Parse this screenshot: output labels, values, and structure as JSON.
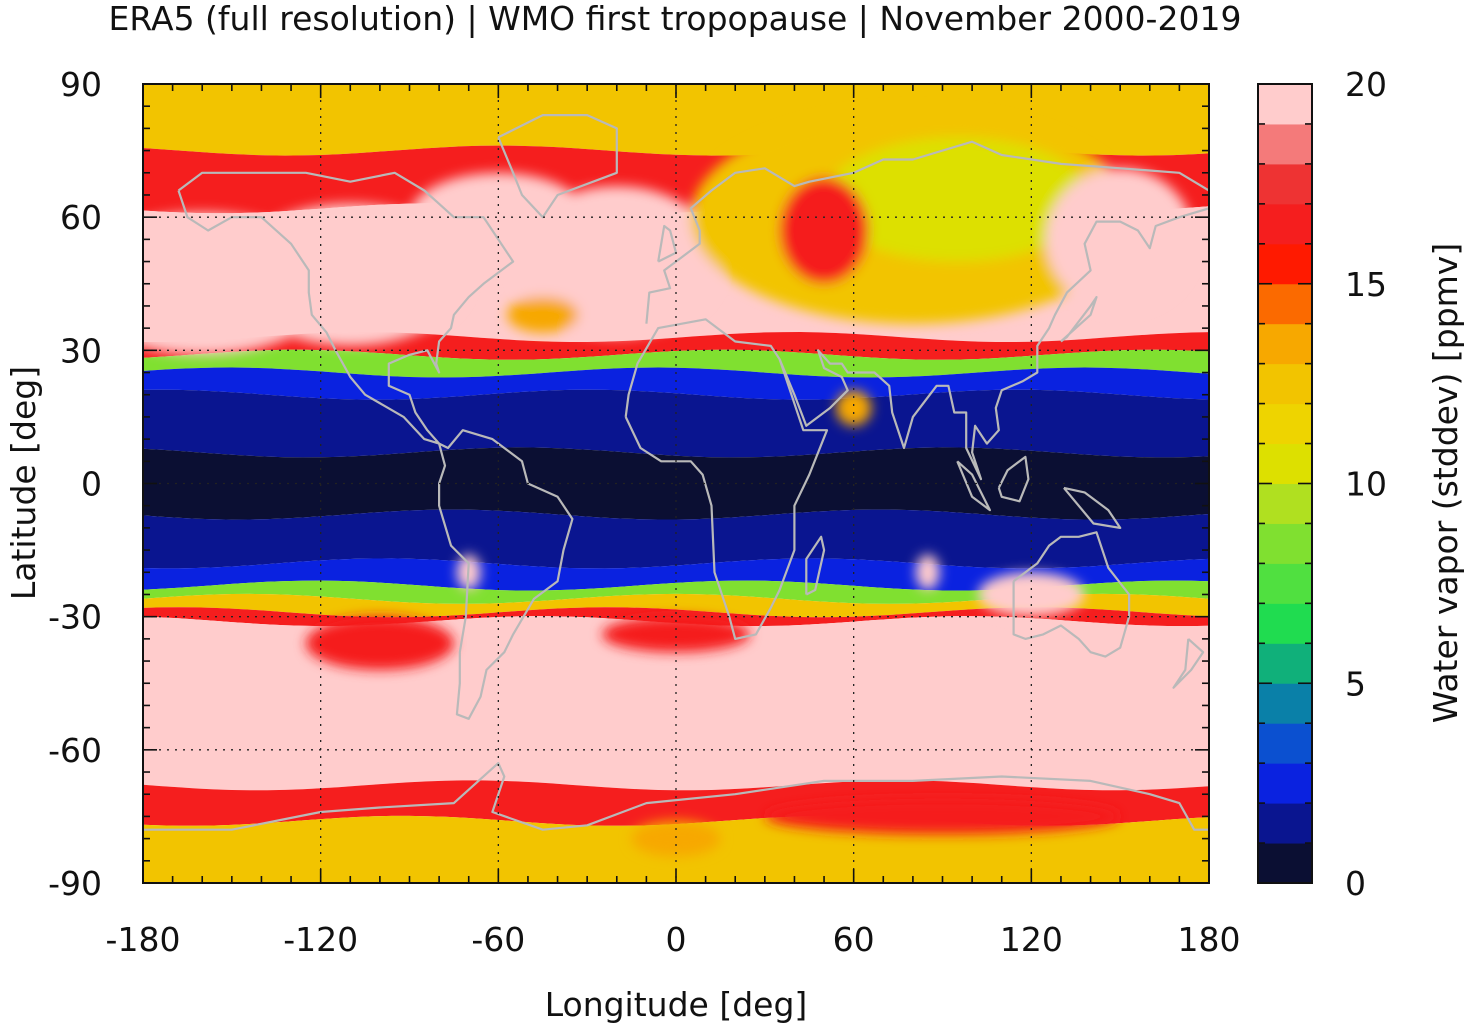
{
  "chart_data": {
    "type": "heatmap",
    "title": "ERA5 (full resolution) | WMO first tropopause | November 2000-2019",
    "xlabel": "Longitude [deg]",
    "ylabel": "Latitude [deg]",
    "colorbar_label": "Water vapor (stddev) [ppmv]",
    "xlim": [
      -180,
      180
    ],
    "ylim": [
      -90,
      90
    ],
    "x_ticks": [
      "-180",
      "-120",
      "-60",
      "0",
      "60",
      "120",
      "180"
    ],
    "y_ticks": [
      "-90",
      "-60",
      "-30",
      "0",
      "30",
      "60",
      "90"
    ],
    "x_tick_values": [
      -180,
      -120,
      -60,
      0,
      60,
      120,
      180
    ],
    "y_tick_values": [
      -90,
      -60,
      -30,
      0,
      30,
      60,
      90
    ],
    "colorbar": {
      "range": [
        0,
        20
      ],
      "ticks": [
        "0",
        "5",
        "10",
        "15",
        "20"
      ],
      "tick_values": [
        0,
        5,
        10,
        15,
        20
      ],
      "levels": [
        {
          "from": 0,
          "to": 1,
          "color": "#0b0f33"
        },
        {
          "from": 1,
          "to": 2,
          "color": "#0a1590"
        },
        {
          "from": 2,
          "to": 3,
          "color": "#0a22e0"
        },
        {
          "from": 3,
          "to": 4,
          "color": "#0b50d0"
        },
        {
          "from": 4,
          "to": 5,
          "color": "#0a80a8"
        },
        {
          "from": 5,
          "to": 6,
          "color": "#10b07a"
        },
        {
          "from": 6,
          "to": 7,
          "color": "#20dc50"
        },
        {
          "from": 7,
          "to": 8,
          "color": "#50e040"
        },
        {
          "from": 8,
          "to": 9,
          "color": "#80e030"
        },
        {
          "from": 9,
          "to": 10,
          "color": "#b0e020"
        },
        {
          "from": 10,
          "to": 11,
          "color": "#dde000"
        },
        {
          "from": 11,
          "to": 12,
          "color": "#eed400"
        },
        {
          "from": 12,
          "to": 13,
          "color": "#f2c400"
        },
        {
          "from": 13,
          "to": 14,
          "color": "#f7a800"
        },
        {
          "from": 14,
          "to": 15,
          "color": "#fb6a00"
        },
        {
          "from": 15,
          "to": 16,
          "color": "#ff1a00"
        },
        {
          "from": 16,
          "to": 17,
          "color": "#f51e1e"
        },
        {
          "from": 17,
          "to": 18,
          "color": "#ee3333"
        },
        {
          "from": 18,
          "to": 19,
          "color": "#f47a7a"
        },
        {
          "from": 19,
          "to": 20,
          "color": "#ffcccc"
        }
      ]
    },
    "grid": true,
    "zonal_structure": [
      {
        "lat_from": 75,
        "lat_to": 90,
        "value": 12.5
      },
      {
        "lat_from": 62,
        "lat_to": 75,
        "value": 16.5
      },
      {
        "lat_from": 33,
        "lat_to": 62,
        "value": 20
      },
      {
        "lat_from": 29,
        "lat_to": 33,
        "value": 16.5
      },
      {
        "lat_from": 25,
        "lat_to": 29,
        "value": 8.5
      },
      {
        "lat_from": 20,
        "lat_to": 25,
        "value": 2.5
      },
      {
        "lat_from": 7,
        "lat_to": 20,
        "value": 1.5
      },
      {
        "lat_from": -7,
        "lat_to": 7,
        "value": 0.5
      },
      {
        "lat_from": -18,
        "lat_to": -7,
        "value": 1.5
      },
      {
        "lat_from": -23,
        "lat_to": -18,
        "value": 2.5
      },
      {
        "lat_from": -26,
        "lat_to": -23,
        "value": 8.5
      },
      {
        "lat_from": -29,
        "lat_to": -26,
        "value": 12.5
      },
      {
        "lat_from": -31,
        "lat_to": -29,
        "value": 16.5
      },
      {
        "lat_from": -68,
        "lat_to": -31,
        "value": 20
      },
      {
        "lat_from": -76,
        "lat_to": -68,
        "value": 16.5
      },
      {
        "lat_from": -90,
        "lat_to": -76,
        "value": 12.5
      }
    ],
    "features": [
      {
        "kind": "ellipse",
        "lon": -160,
        "lat": 45,
        "rlon": 45,
        "rlat": 16,
        "value": 20
      },
      {
        "kind": "ellipse",
        "lon": -110,
        "lat": 47,
        "rlon": 40,
        "rlat": 16,
        "value": 20
      },
      {
        "kind": "ellipse",
        "lon": -60,
        "lat": 60,
        "rlon": 30,
        "rlat": 10,
        "value": 20
      },
      {
        "kind": "ellipse",
        "lon": -20,
        "lat": 50,
        "rlon": 35,
        "rlat": 17,
        "value": 20
      },
      {
        "kind": "ellipse",
        "lon": 80,
        "lat": 60,
        "rlon": 75,
        "rlat": 24,
        "value": 12.5
      },
      {
        "kind": "ellipse",
        "lon": 95,
        "lat": 64,
        "rlon": 45,
        "rlat": 14,
        "value": 11
      },
      {
        "kind": "ellipse",
        "lon": 50,
        "lat": 57,
        "rlon": 15,
        "rlat": 12,
        "value": 16.5
      },
      {
        "kind": "ellipse",
        "lon": 150,
        "lat": 55,
        "rlon": 25,
        "rlat": 16,
        "value": 20
      },
      {
        "kind": "ellipse",
        "lon": -45,
        "lat": 38,
        "rlon": 12,
        "rlat": 4,
        "value": 13.5
      },
      {
        "kind": "ellipse",
        "lon": -100,
        "lat": -36,
        "rlon": 25,
        "rlat": 6,
        "value": 16.5
      },
      {
        "kind": "ellipse",
        "lon": 0,
        "lat": -34,
        "rlon": 25,
        "rlat": 4,
        "value": 16.5
      },
      {
        "kind": "ellipse",
        "lon": 120,
        "lat": -25,
        "rlon": 18,
        "rlat": 5,
        "value": 20
      },
      {
        "kind": "ellipse",
        "lon": 60,
        "lat": 17,
        "rlon": 6,
        "rlat": 4,
        "value": 13.5
      },
      {
        "kind": "ellipse",
        "lon": 85,
        "lat": -20,
        "rlon": 4,
        "rlat": 4,
        "value": 20
      },
      {
        "kind": "ellipse",
        "lon": -70,
        "lat": -20,
        "rlon": 4,
        "rlat": 4,
        "value": 20
      },
      {
        "kind": "ellipse",
        "lon": 0,
        "lat": -80,
        "rlon": 15,
        "rlat": 4,
        "value": 13.5
      },
      {
        "kind": "ellipse",
        "lon": 90,
        "lat": -75,
        "rlon": 60,
        "rlat": 4,
        "value": 16.5
      }
    ]
  }
}
